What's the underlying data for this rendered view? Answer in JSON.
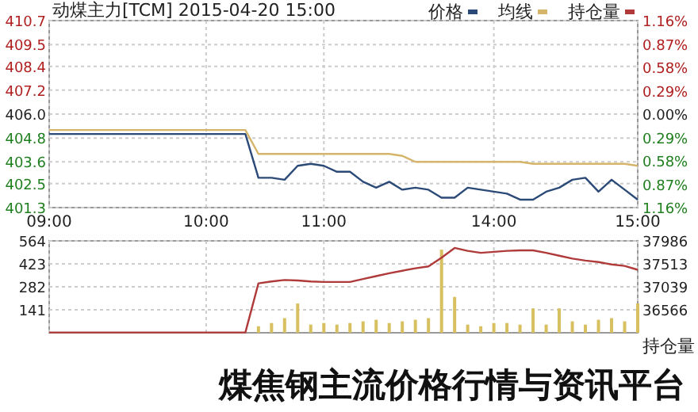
{
  "chart_data": [
    {
      "type": "line",
      "title": "动煤主力[TCM] 2015-04-20 15:00",
      "categories": [
        "09:00",
        null,
        null,
        null,
        null,
        null,
        null,
        null,
        null,
        null,
        null,
        null,
        "10:00",
        null,
        null,
        null,
        null,
        null,
        null,
        null,
        null,
        "11:00",
        null,
        null,
        null,
        null,
        null,
        null,
        null,
        null,
        null,
        null,
        null,
        null,
        "14:00",
        null,
        null,
        null,
        null,
        null,
        null,
        null,
        null,
        null,
        null,
        "15:00"
      ],
      "ylim": [
        401.3,
        410.7
      ],
      "yticks": [
        401.3,
        402.5,
        403.6,
        404.8,
        {
          "value": 406,
          "label": "406.0"
        },
        407.2,
        408.4,
        409.5,
        410.7
      ],
      "y2lim": [
        -1.16,
        1.16
      ],
      "y2ticks": [
        {
          "value": 1.16,
          "label": "1.16%"
        },
        {
          "value": 0.87,
          "label": "0.87%"
        },
        {
          "value": 0.58,
          "label": "0.58%"
        },
        {
          "value": 0.29,
          "label": "0.29%"
        },
        {
          "value": 0,
          "label": "0.00%"
        },
        {
          "value": -0.29,
          "label": "0.29%"
        },
        {
          "value": -0.58,
          "label": "0.58%"
        },
        {
          "value": -0.87,
          "label": "0.87%"
        },
        {
          "value": -1.16,
          "label": "1.16%"
        }
      ],
      "grid": true,
      "legend": "top right",
      "series": [
        {
          "name": "价格",
          "color": "#2b4a78",
          "values": [
            405.0,
            405.0,
            405.0,
            405.0,
            405.0,
            405.0,
            405.0,
            405.0,
            405.0,
            405.0,
            405.0,
            405.0,
            405.0,
            405.0,
            405.0,
            405.0,
            402.8,
            402.8,
            402.7,
            403.4,
            403.5,
            403.4,
            403.1,
            403.1,
            402.6,
            402.3,
            402.6,
            402.2,
            402.3,
            402.2,
            401.8,
            401.8,
            402.3,
            402.2,
            402.1,
            402.0,
            401.7,
            401.7,
            402.1,
            402.3,
            402.7,
            402.8,
            402.1,
            402.7,
            402.2,
            401.7
          ]
        },
        {
          "name": "均线",
          "color": "#d6b56a",
          "values": [
            405.2,
            405.2,
            405.2,
            405.2,
            405.2,
            405.2,
            405.2,
            405.2,
            405.2,
            405.2,
            405.2,
            405.2,
            405.2,
            405.2,
            405.2,
            405.2,
            404.0,
            404.0,
            404.0,
            404.0,
            404.0,
            404.0,
            404.0,
            404.0,
            404.0,
            404.0,
            404.0,
            403.9,
            403.6,
            403.6,
            403.6,
            403.6,
            403.6,
            403.6,
            403.6,
            403.6,
            403.6,
            403.5,
            403.5,
            403.5,
            403.5,
            403.5,
            403.5,
            403.5,
            403.5,
            403.4
          ]
        }
      ]
    },
    {
      "type": "bar",
      "categories": [
        null,
        null,
        null,
        null,
        null,
        null,
        null,
        null,
        null,
        null,
        null,
        null,
        null,
        null,
        null,
        null,
        null,
        null,
        null,
        null,
        null,
        null,
        null,
        null,
        null,
        null,
        null,
        null,
        null,
        null,
        null,
        null,
        null,
        null,
        null,
        null,
        null,
        null,
        null,
        null,
        null,
        null,
        null,
        null,
        null,
        null
      ],
      "tick_labels": "y",
      "ylim": [
        0,
        564
      ],
      "yticks": [
        141,
        282,
        423,
        564
      ],
      "y2lim": [
        36093,
        37986
      ],
      "y2ticks": [
        36566,
        37039,
        37513,
        37986
      ],
      "y2label": "持仓量",
      "grid": true,
      "legend": "top right",
      "annotations": [
        "煤焦钢主流价格行情与资讯平台"
      ],
      "series": [
        {
          "color": "#d8c060",
          "values": [
            null,
            null,
            null,
            null,
            null,
            null,
            null,
            null,
            null,
            null,
            null,
            null,
            null,
            null,
            null,
            null,
            40,
            60,
            90,
            180,
            50,
            60,
            50,
            60,
            70,
            80,
            60,
            70,
            80,
            90,
            510,
            220,
            50,
            40,
            60,
            60,
            50,
            150,
            50,
            150,
            70,
            50,
            80,
            90,
            70,
            180
          ]
        },
        {
          "type": "line",
          "name": "持仓量",
          "axis": "y2",
          "color": "#b03a3a",
          "values": [
            36100,
            36100,
            36100,
            36100,
            36100,
            36100,
            36100,
            36100,
            36100,
            36100,
            36100,
            36100,
            36100,
            36100,
            36100,
            36100,
            37110,
            37150,
            37180,
            37170,
            37150,
            37140,
            37140,
            37140,
            37200,
            37260,
            37320,
            37370,
            37420,
            37460,
            37640,
            37840,
            37780,
            37740,
            37760,
            37780,
            37790,
            37790,
            37740,
            37680,
            37620,
            37580,
            37550,
            37500,
            37470,
            37390
          ]
        }
      ]
    }
  ]
}
